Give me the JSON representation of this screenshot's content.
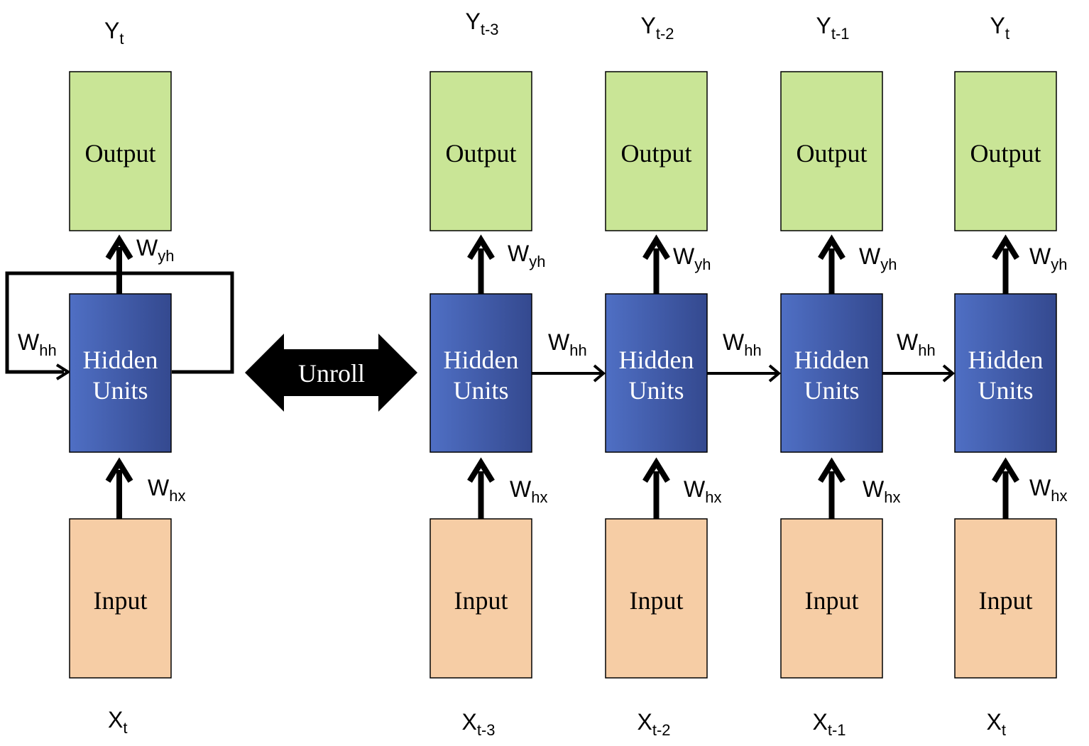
{
  "colors": {
    "output_fill": "#c9e596",
    "input_fill": "#f6cda5",
    "hidden_fill_left": "#4f6fc4",
    "hidden_fill_right": "#34498f",
    "hidden_text": "#ffffff",
    "stroke": "#000000"
  },
  "folded": {
    "y_label": "Y",
    "y_sub": "t",
    "x_label": "X",
    "x_sub": "t",
    "output_label": "Output",
    "hidden_line1": "Hidden",
    "hidden_line2": "Units",
    "input_label": "Input",
    "w_yh": "W",
    "w_yh_sub": "yh",
    "w_hx": "W",
    "w_hx_sub": "hx",
    "w_hh": "W",
    "w_hh_sub": "hh"
  },
  "unroll_label": "Unroll",
  "steps": [
    {
      "y_label": "Y",
      "y_sub": "t-3",
      "x_label": "X",
      "x_sub": "t-3",
      "output_label": "Output",
      "hidden_line1": "Hidden",
      "hidden_line2": "Units",
      "input_label": "Input",
      "w_yh": "W",
      "w_yh_sub": "yh",
      "w_hx": "W",
      "w_hx_sub": "hx"
    },
    {
      "y_label": "Y",
      "y_sub": "t-2",
      "x_label": "X",
      "x_sub": "t-2",
      "output_label": "Output",
      "hidden_line1": "Hidden",
      "hidden_line2": "Units",
      "input_label": "Input",
      "w_yh": "W",
      "w_yh_sub": "yh",
      "w_hx": "W",
      "w_hx_sub": "hx"
    },
    {
      "y_label": "Y",
      "y_sub": "t-1",
      "x_label": "X",
      "x_sub": "t-1",
      "output_label": "Output",
      "hidden_line1": "Hidden",
      "hidden_line2": "Units",
      "input_label": "Input",
      "w_yh": "W",
      "w_yh_sub": "yh",
      "w_hx": "W",
      "w_hx_sub": "hx"
    },
    {
      "y_label": "Y",
      "y_sub": "t",
      "x_label": "X",
      "x_sub": "t",
      "output_label": "Output",
      "hidden_line1": "Hidden",
      "hidden_line2": "Units",
      "input_label": "Input",
      "w_yh": "W",
      "w_yh_sub": "yh",
      "w_hx": "W",
      "w_hx_sub": "hx"
    }
  ],
  "transitions": [
    {
      "w": "W",
      "w_sub": "hh"
    },
    {
      "w": "W",
      "w_sub": "hh"
    },
    {
      "w": "W",
      "w_sub": "hh"
    }
  ]
}
